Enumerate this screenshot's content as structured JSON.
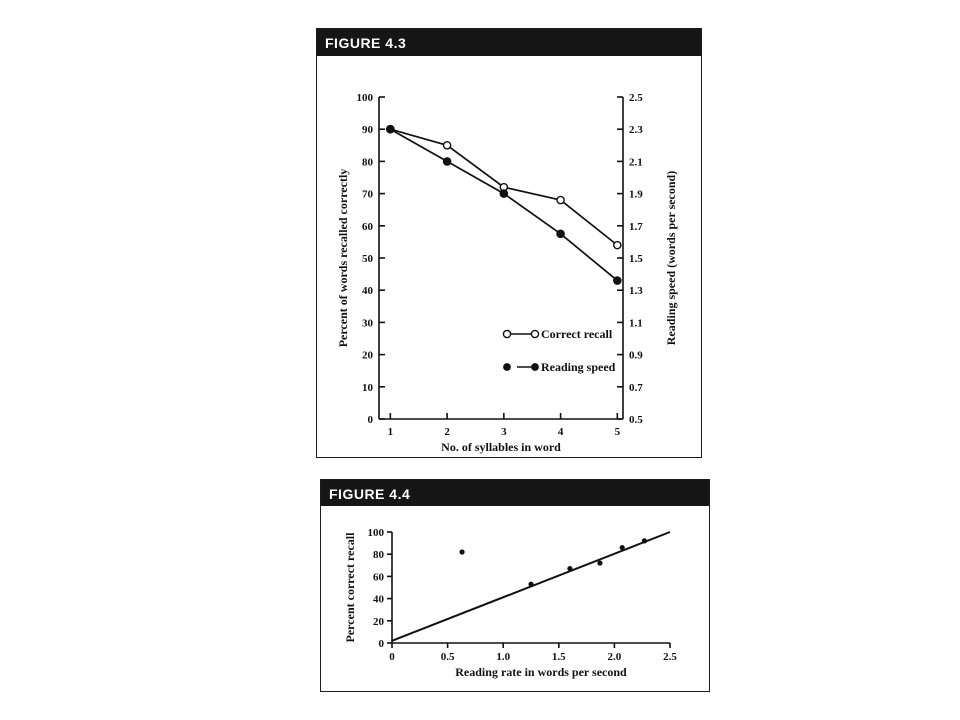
{
  "chart_data": [
    {
      "figure_label": "FIGURE 4.3",
      "type": "line",
      "x": [
        1,
        2,
        3,
        4,
        5
      ],
      "xlabel": "No. of syllables in word",
      "xlim": [
        0.8,
        5.1
      ],
      "xticks": [
        "1",
        "2",
        "3",
        "4",
        "5"
      ],
      "ylabel": "Percent of words recalled correctly",
      "ylim": [
        0,
        100
      ],
      "yticks": [
        "0",
        "10",
        "20",
        "30",
        "40",
        "50",
        "60",
        "70",
        "80",
        "90",
        "100"
      ],
      "y2label": "Reading speed (words per second)",
      "y2lim": [
        0.5,
        2.5
      ],
      "y2ticks": [
        "0.5",
        "0.7",
        "0.9",
        "1.1",
        "1.3",
        "1.5",
        "1.7",
        "1.9",
        "2.1",
        "2.3",
        "2.5"
      ],
      "series": [
        {
          "name": "Correct recall",
          "axis": "left",
          "marker": "open-circle",
          "values": [
            90,
            85,
            72,
            68,
            54
          ]
        },
        {
          "name": "Reading speed",
          "axis": "right",
          "marker": "filled-circle",
          "values": [
            2.3,
            2.1,
            1.9,
            1.65,
            1.36
          ]
        }
      ],
      "legend_position": "bottom-right",
      "grid": false
    },
    {
      "figure_label": "FIGURE 4.4",
      "type": "scatter",
      "xlabel": "Reading rate in words per second",
      "xlim": [
        0,
        2.5
      ],
      "xticks": [
        "0",
        "0.5",
        "1.0",
        "1.5",
        "2.0",
        "2.5"
      ],
      "ylabel": "Percent correct recall",
      "ylim": [
        0,
        100
      ],
      "yticks": [
        "0",
        "20",
        "40",
        "60",
        "80",
        "100"
      ],
      "points": [
        {
          "x": 0.63,
          "y": 82
        },
        {
          "x": 1.25,
          "y": 53
        },
        {
          "x": 1.6,
          "y": 67
        },
        {
          "x": 1.87,
          "y": 72
        },
        {
          "x": 2.07,
          "y": 86
        },
        {
          "x": 2.27,
          "y": 92
        }
      ],
      "trend_line": {
        "x": [
          0,
          2.5
        ],
        "y": [
          2,
          100
        ]
      },
      "grid": false
    }
  ]
}
